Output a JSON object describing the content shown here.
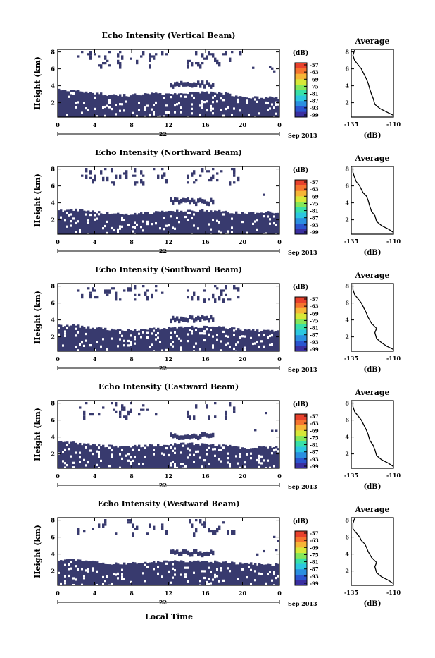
{
  "figure": {
    "xlabel_bottom": "Local Time",
    "date_label": "Sep 2013",
    "day_label": "22",
    "colorbar_unit": "(dB)",
    "profile_title": "Average",
    "profile_xlabel": "(dB)"
  },
  "colors": {
    "echo_fill": "#383a6e",
    "background": "#ffffff",
    "colorbar": [
      "#3a2fa0",
      "#2a55cf",
      "#2a8fe0",
      "#2cc7e0",
      "#38e0a8",
      "#84e65a",
      "#d7e838",
      "#f6b637",
      "#f5742f",
      "#e8412c"
    ]
  },
  "chart_data": [
    {
      "type": "heatmap",
      "title": "Echo Intensity (Vertical Beam)",
      "ylabel": "Height (km)",
      "xlim": [
        0,
        24
      ],
      "ylim": [
        0.3,
        8.3
      ],
      "x_ticks": [
        "0",
        "4",
        "8",
        "12",
        "16",
        "20",
        "0"
      ],
      "y_ticks": [
        "2",
        "4",
        "6",
        "8"
      ],
      "colorbar_ticks": [
        "-57",
        "-63",
        "-69",
        "-75",
        "-81",
        "-87",
        "-93",
        "-99"
      ],
      "echo_top_profile": {
        "x": [
          0,
          2,
          4,
          6,
          8,
          10,
          12,
          14,
          16,
          18,
          20,
          22,
          24
        ],
        "top_km": [
          3.6,
          3.4,
          3.1,
          2.9,
          2.9,
          3.1,
          3.0,
          3.1,
          3.2,
          3.1,
          2.7,
          2.6,
          2.6
        ]
      },
      "profile": {
        "xlim": [
          -135,
          -110
        ],
        "ylim": [
          0.3,
          8.3
        ],
        "x_ticks": [
          "-135",
          "-110"
        ],
        "y_ticks": [
          "2",
          "4",
          "6",
          "8"
        ],
        "x": [
          -110,
          -114,
          -118,
          -121,
          -122,
          -123,
          -124,
          -125,
          -126,
          -127,
          -128,
          -129,
          -131,
          -133,
          -134,
          -133
        ],
        "y": [
          0.5,
          0.9,
          1.3,
          1.8,
          2.5,
          3.0,
          3.6,
          4.3,
          4.8,
          5.2,
          5.6,
          6.0,
          6.5,
          7.0,
          7.6,
          8.2
        ]
      }
    },
    {
      "type": "heatmap",
      "title": "Echo Intensity (Northward Beam)",
      "ylabel": "Height (km)",
      "xlim": [
        0,
        24
      ],
      "ylim": [
        0.3,
        8.3
      ],
      "x_ticks": [
        "0",
        "4",
        "8",
        "12",
        "16",
        "20",
        "0"
      ],
      "y_ticks": [
        "2",
        "4",
        "6",
        "8"
      ],
      "colorbar_ticks": [
        "-57",
        "-63",
        "-69",
        "-75",
        "-81",
        "-87",
        "-93",
        "-99"
      ],
      "echo_top_profile": {
        "x": [
          0,
          2,
          4,
          6,
          8,
          10,
          12,
          14,
          16,
          18,
          20,
          22,
          24
        ],
        "top_km": [
          3.0,
          3.2,
          2.9,
          2.8,
          2.7,
          2.8,
          3.0,
          3.1,
          3.1,
          3.0,
          2.8,
          2.9,
          2.8
        ]
      },
      "profile": {
        "xlim": [
          -135,
          -110
        ],
        "ylim": [
          0.3,
          8.3
        ],
        "x_ticks": [
          "-135",
          "-110"
        ],
        "y_ticks": [
          "2",
          "4",
          "6",
          "8"
        ],
        "x": [
          -110,
          -113,
          -117,
          -120,
          -121,
          -123,
          -124,
          -125,
          -126,
          -128,
          -129,
          -130,
          -132,
          -133,
          -134,
          -134
        ],
        "y": [
          0.5,
          0.9,
          1.3,
          1.8,
          2.5,
          3.0,
          3.6,
          4.3,
          4.8,
          5.2,
          5.6,
          6.0,
          6.5,
          7.0,
          7.6,
          8.2
        ]
      }
    },
    {
      "type": "heatmap",
      "title": "Echo Intensity (Southward Beam)",
      "ylabel": "Height (km)",
      "xlim": [
        0,
        24
      ],
      "ylim": [
        0.3,
        8.3
      ],
      "x_ticks": [
        "0",
        "4",
        "8",
        "12",
        "16",
        "20",
        "0"
      ],
      "y_ticks": [
        "2",
        "4",
        "6",
        "8"
      ],
      "colorbar_ticks": [
        "-57",
        "-63",
        "-69",
        "-75",
        "-81",
        "-87",
        "-93",
        "-99"
      ],
      "echo_top_profile": {
        "x": [
          0,
          2,
          4,
          6,
          8,
          10,
          12,
          14,
          16,
          18,
          20,
          22,
          24
        ],
        "top_km": [
          3.4,
          3.3,
          3.0,
          2.9,
          2.8,
          2.9,
          3.1,
          3.2,
          3.2,
          3.1,
          2.8,
          2.7,
          2.8
        ]
      },
      "profile": {
        "xlim": [
          -135,
          -110
        ],
        "ylim": [
          0.3,
          8.3
        ],
        "x_ticks": [
          "-135",
          "-110"
        ],
        "y_ticks": [
          "2",
          "4",
          "6",
          "8"
        ],
        "x": [
          -110,
          -114,
          -117,
          -120,
          -121,
          -120,
          -123,
          -125,
          -126,
          -127,
          -128,
          -129,
          -131,
          -133,
          -134,
          -134
        ],
        "y": [
          0.5,
          0.9,
          1.3,
          1.8,
          2.5,
          3.0,
          3.6,
          4.3,
          4.8,
          5.2,
          5.6,
          6.0,
          6.5,
          7.0,
          7.6,
          8.2
        ]
      }
    },
    {
      "type": "heatmap",
      "title": "Echo Intensity (Eastward Beam)",
      "ylabel": "Height (km)",
      "xlim": [
        0,
        24
      ],
      "ylim": [
        0.3,
        8.3
      ],
      "x_ticks": [
        "0",
        "4",
        "8",
        "12",
        "16",
        "20",
        "0"
      ],
      "y_ticks": [
        "2",
        "4",
        "6",
        "8"
      ],
      "colorbar_ticks": [
        "-57",
        "-63",
        "-69",
        "-75",
        "-81",
        "-87",
        "-93",
        "-99"
      ],
      "echo_top_profile": {
        "x": [
          0,
          2,
          4,
          6,
          8,
          10,
          12,
          14,
          16,
          18,
          20,
          22,
          24
        ],
        "top_km": [
          3.5,
          3.3,
          3.0,
          2.9,
          2.9,
          3.0,
          3.1,
          3.2,
          3.1,
          3.0,
          2.7,
          2.8,
          2.8
        ]
      },
      "profile": {
        "xlim": [
          -135,
          -110
        ],
        "ylim": [
          0.3,
          8.3
        ],
        "x_ticks": [
          "-135",
          "-110"
        ],
        "y_ticks": [
          "2",
          "4",
          "6",
          "8"
        ],
        "x": [
          -110,
          -113,
          -117,
          -120,
          -121,
          -122,
          -124,
          -125,
          -126,
          -127,
          -128,
          -129,
          -131,
          -133,
          -134,
          -134
        ],
        "y": [
          0.5,
          0.9,
          1.3,
          1.8,
          2.5,
          3.0,
          3.6,
          4.3,
          4.8,
          5.2,
          5.6,
          6.0,
          6.5,
          7.0,
          7.6,
          8.2
        ]
      }
    },
    {
      "type": "heatmap",
      "title": "Echo Intensity (Westward Beam)",
      "ylabel": "Height (km)",
      "xlim": [
        0,
        24
      ],
      "ylim": [
        0.3,
        8.3
      ],
      "x_ticks": [
        "0",
        "4",
        "8",
        "12",
        "16",
        "20",
        "0"
      ],
      "y_ticks": [
        "2",
        "4",
        "6",
        "8"
      ],
      "colorbar_ticks": [
        "-57",
        "-63",
        "-69",
        "-75",
        "-81",
        "-87",
        "-93",
        "-99"
      ],
      "echo_top_profile": {
        "x": [
          0,
          2,
          4,
          6,
          8,
          10,
          12,
          14,
          16,
          18,
          20,
          22,
          24
        ],
        "top_km": [
          3.4,
          3.3,
          3.1,
          2.9,
          2.9,
          3.0,
          3.2,
          3.1,
          3.2,
          3.0,
          2.9,
          2.8,
          2.7
        ]
      },
      "profile": {
        "xlim": [
          -135,
          -110
        ],
        "ylim": [
          0.3,
          8.3
        ],
        "x_ticks": [
          "-135",
          "-110"
        ],
        "y_ticks": [
          "2",
          "4",
          "6",
          "8"
        ],
        "x": [
          -110,
          -113,
          -117,
          -120,
          -121,
          -120,
          -123,
          -125,
          -126,
          -127,
          -129,
          -130,
          -132,
          -134,
          -134,
          -133
        ],
        "y": [
          0.5,
          0.9,
          1.3,
          1.8,
          2.5,
          3.0,
          3.6,
          4.3,
          4.8,
          5.2,
          5.6,
          6.0,
          6.5,
          7.0,
          7.6,
          8.2
        ]
      }
    }
  ]
}
